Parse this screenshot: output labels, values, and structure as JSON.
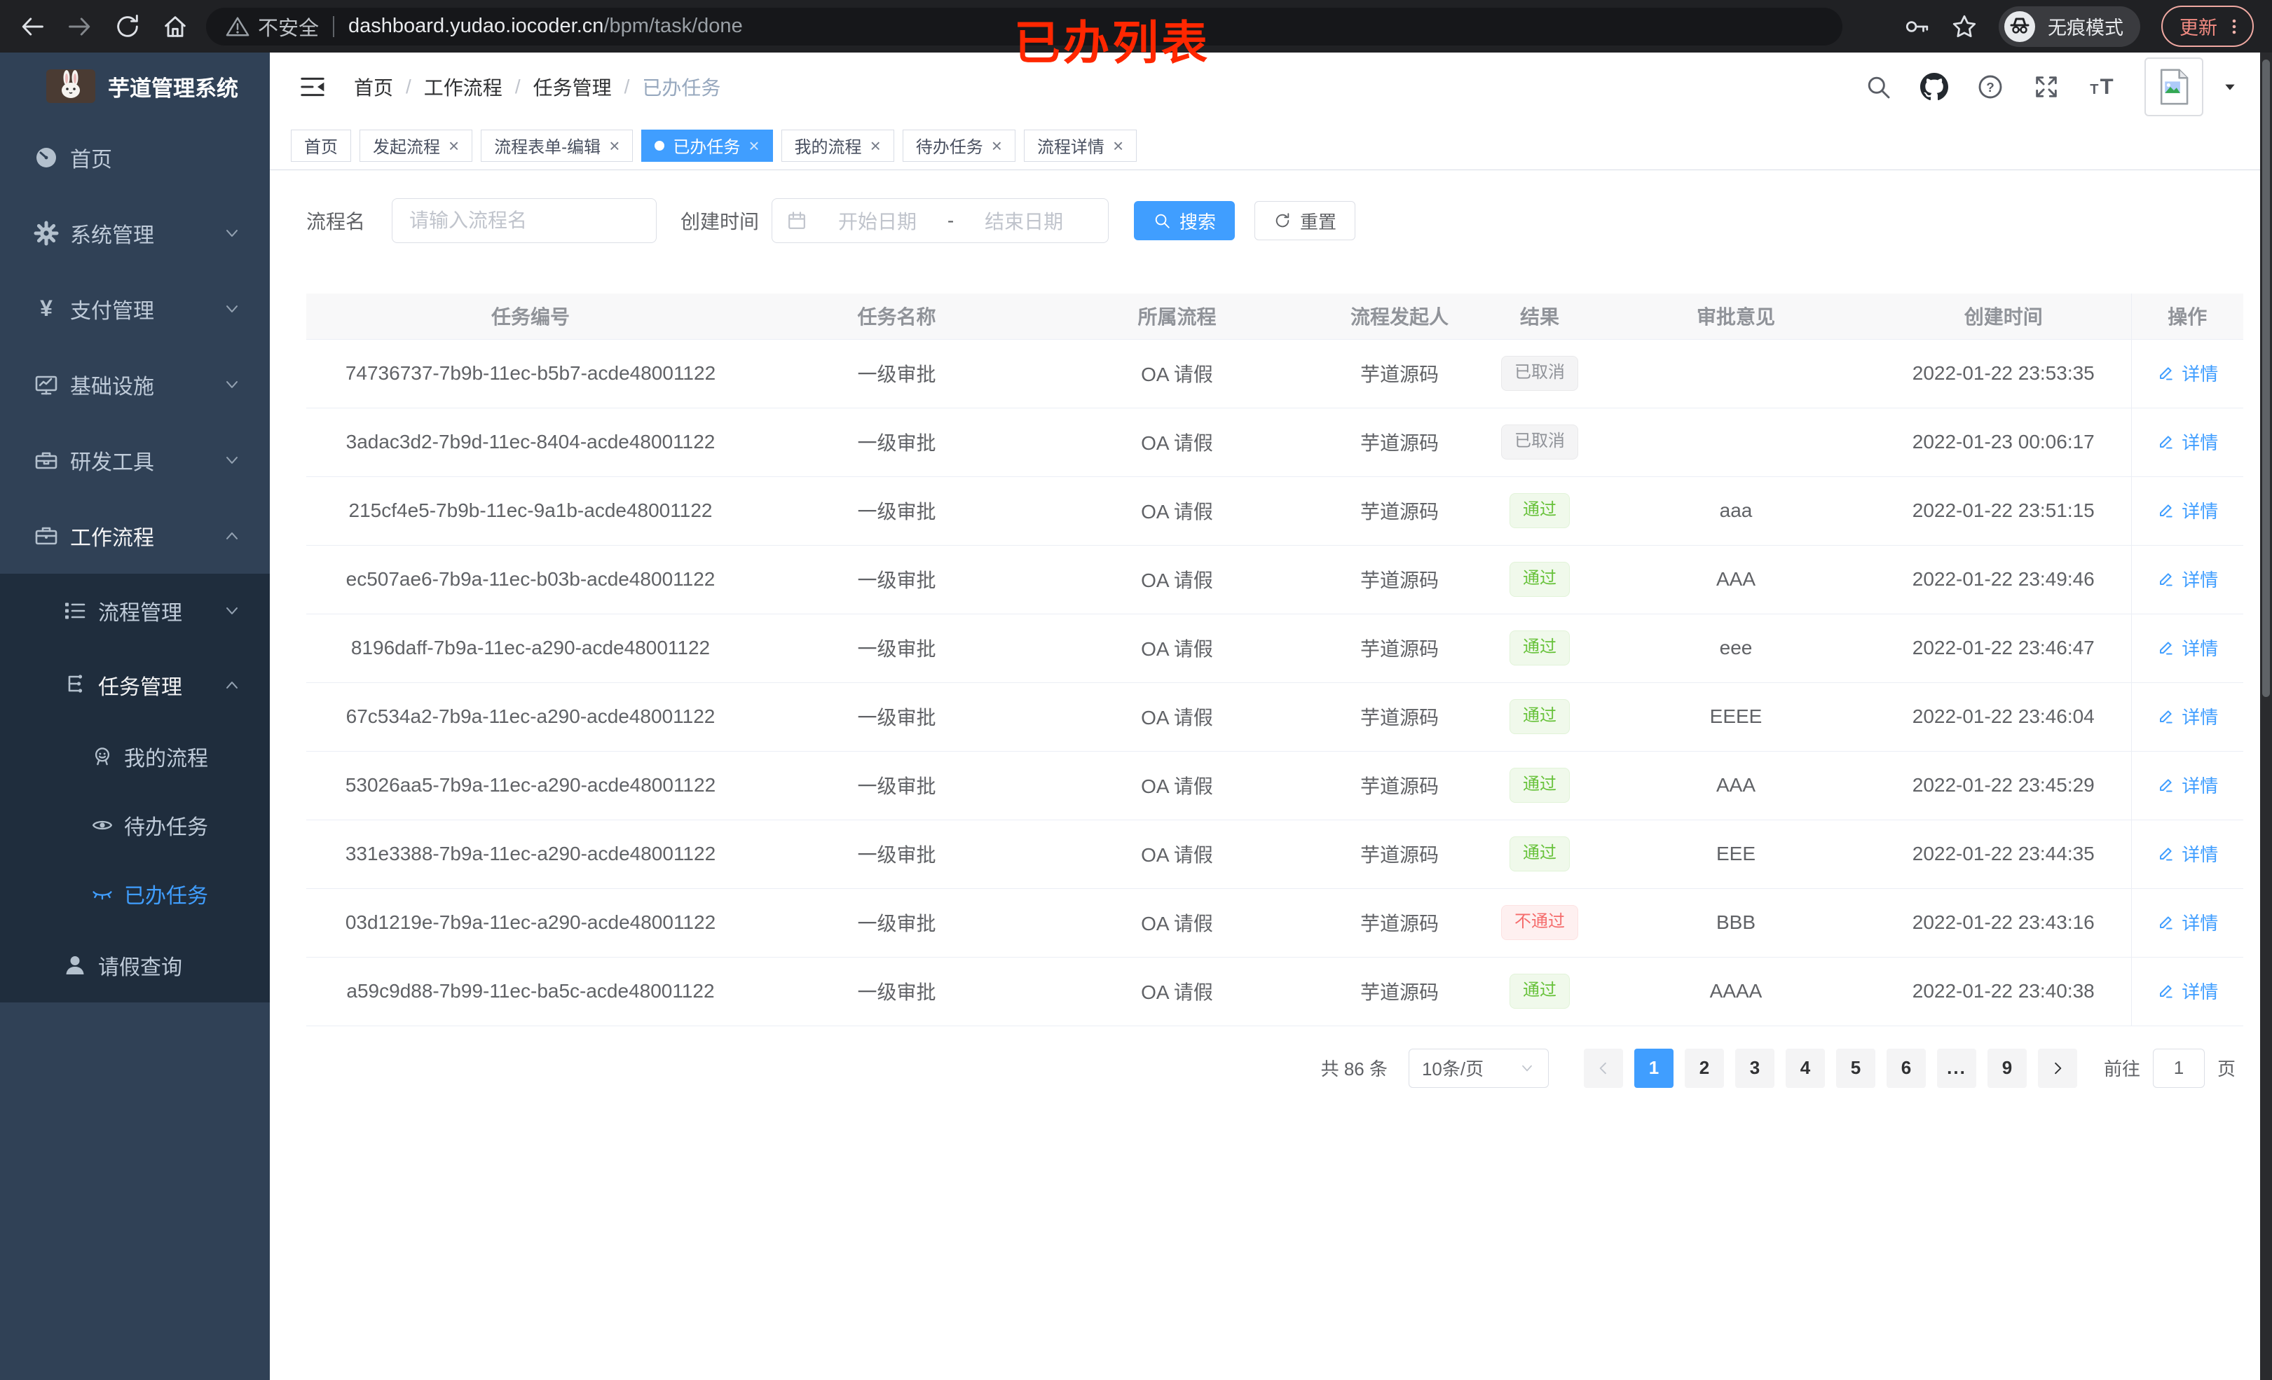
{
  "browser": {
    "security_label": "不安全",
    "url_host": "dashboard.yudao.iocoder.cn",
    "url_path": "/bpm/task/done",
    "incognito_label": "无痕模式",
    "update_label": "更新",
    "annotation": "已办列表"
  },
  "sidebar": {
    "title": "芋道管理系统",
    "menu": [
      {
        "name": "home",
        "icon": "dashboard-icon",
        "label": "首页"
      },
      {
        "name": "system",
        "icon": "gear-icon",
        "label": "系统管理",
        "arrow": "down"
      },
      {
        "name": "payment",
        "icon": "yen-icon",
        "label": "支付管理",
        "arrow": "down"
      },
      {
        "name": "infra",
        "icon": "monitor-icon",
        "label": "基础设施",
        "arrow": "down"
      },
      {
        "name": "devtools",
        "icon": "toolbox-icon",
        "label": "研发工具",
        "arrow": "down"
      },
      {
        "name": "workflow",
        "icon": "briefcase-icon",
        "label": "工作流程",
        "arrow": "up",
        "open": true
      }
    ],
    "submenu": [
      {
        "name": "process-mgmt",
        "icon": "list-icon",
        "label": "流程管理",
        "arrow": "down",
        "level": 1
      },
      {
        "name": "task-mgmt",
        "icon": "tree-icon",
        "label": "任务管理",
        "arrow": "up",
        "level": 1,
        "open": true
      },
      {
        "name": "my-process",
        "icon": "face-icon",
        "label": "我的流程",
        "level": 2
      },
      {
        "name": "todo-tasks",
        "icon": "eye-icon",
        "label": "待办任务",
        "level": 2
      },
      {
        "name": "done-tasks",
        "icon": "eye-closed-icon",
        "label": "已办任务",
        "level": 2,
        "active": true
      },
      {
        "name": "leave-query",
        "icon": "user-icon",
        "label": "请假查询",
        "level": 1
      }
    ]
  },
  "breadcrumb": {
    "separator": "/",
    "items": [
      "首页",
      "工作流程",
      "任务管理",
      "已办任务"
    ]
  },
  "tabs": [
    {
      "label": "首页",
      "closable": false
    },
    {
      "label": "发起流程",
      "closable": true
    },
    {
      "label": "流程表单-编辑",
      "closable": true
    },
    {
      "label": "已办任务",
      "closable": true,
      "active": true
    },
    {
      "label": "我的流程",
      "closable": true
    },
    {
      "label": "待办任务",
      "closable": true
    },
    {
      "label": "流程详情",
      "closable": true
    }
  ],
  "filter": {
    "name_label": "流程名",
    "name_placeholder": "请输入流程名",
    "date_label": "创建时间",
    "date_start_placeholder": "开始日期",
    "date_separator": "-",
    "date_end_placeholder": "结束日期",
    "search_label": "搜索",
    "reset_label": "重置"
  },
  "table": {
    "columns": [
      "任务编号",
      "任务名称",
      "所属流程",
      "流程发起人",
      "结果",
      "审批意见",
      "创建时间",
      "操作"
    ],
    "detail_label": "详情",
    "rows": [
      {
        "id": "74736737-7b9b-11ec-b5b7-acde48001122",
        "name": "一级审批",
        "process": "OA 请假",
        "starter": "芋道源码",
        "result": "已取消",
        "result_type": "info",
        "opinion": "",
        "time": "2022-01-22 23:53:35"
      },
      {
        "id": "3adac3d2-7b9d-11ec-8404-acde48001122",
        "name": "一级审批",
        "process": "OA 请假",
        "starter": "芋道源码",
        "result": "已取消",
        "result_type": "info",
        "opinion": "",
        "time": "2022-01-23 00:06:17"
      },
      {
        "id": "215cf4e5-7b9b-11ec-9a1b-acde48001122",
        "name": "一级审批",
        "process": "OA 请假",
        "starter": "芋道源码",
        "result": "通过",
        "result_type": "success",
        "opinion": "aaa",
        "time": "2022-01-22 23:51:15"
      },
      {
        "id": "ec507ae6-7b9a-11ec-b03b-acde48001122",
        "name": "一级审批",
        "process": "OA 请假",
        "starter": "芋道源码",
        "result": "通过",
        "result_type": "success",
        "opinion": "AAA",
        "time": "2022-01-22 23:49:46"
      },
      {
        "id": "8196daff-7b9a-11ec-a290-acde48001122",
        "name": "一级审批",
        "process": "OA 请假",
        "starter": "芋道源码",
        "result": "通过",
        "result_type": "success",
        "opinion": "eee",
        "time": "2022-01-22 23:46:47"
      },
      {
        "id": "67c534a2-7b9a-11ec-a290-acde48001122",
        "name": "一级审批",
        "process": "OA 请假",
        "starter": "芋道源码",
        "result": "通过",
        "result_type": "success",
        "opinion": "EEEE",
        "time": "2022-01-22 23:46:04"
      },
      {
        "id": "53026aa5-7b9a-11ec-a290-acde48001122",
        "name": "一级审批",
        "process": "OA 请假",
        "starter": "芋道源码",
        "result": "通过",
        "result_type": "success",
        "opinion": "AAA",
        "time": "2022-01-22 23:45:29"
      },
      {
        "id": "331e3388-7b9a-11ec-a290-acde48001122",
        "name": "一级审批",
        "process": "OA 请假",
        "starter": "芋道源码",
        "result": "通过",
        "result_type": "success",
        "opinion": "EEE",
        "time": "2022-01-22 23:44:35"
      },
      {
        "id": "03d1219e-7b9a-11ec-a290-acde48001122",
        "name": "一级审批",
        "process": "OA 请假",
        "starter": "芋道源码",
        "result": "不通过",
        "result_type": "danger",
        "opinion": "BBB",
        "time": "2022-01-22 23:43:16"
      },
      {
        "id": "a59c9d88-7b99-11ec-ba5c-acde48001122",
        "name": "一级审批",
        "process": "OA 请假",
        "starter": "芋道源码",
        "result": "通过",
        "result_type": "success",
        "opinion": "AAAA",
        "time": "2022-01-22 23:40:38"
      }
    ]
  },
  "pagination": {
    "total_label": "共 86 条",
    "page_size": "10条/页",
    "pages": [
      {
        "label": "1",
        "active": true
      },
      {
        "label": "2"
      },
      {
        "label": "3"
      },
      {
        "label": "4"
      },
      {
        "label": "5"
      },
      {
        "label": "6"
      },
      {
        "label": "...",
        "more": true
      },
      {
        "label": "9"
      }
    ],
    "goto_label": "前往",
    "goto_value": "1",
    "goto_suffix": "页"
  },
  "colors": {
    "accent": "#409eff",
    "success": "#67c23a",
    "danger": "#f56c6c",
    "info": "#909399",
    "sidebar_bg": "#304156",
    "submenu_bg": "#1f2d3d",
    "annotation": "#ff2700"
  }
}
